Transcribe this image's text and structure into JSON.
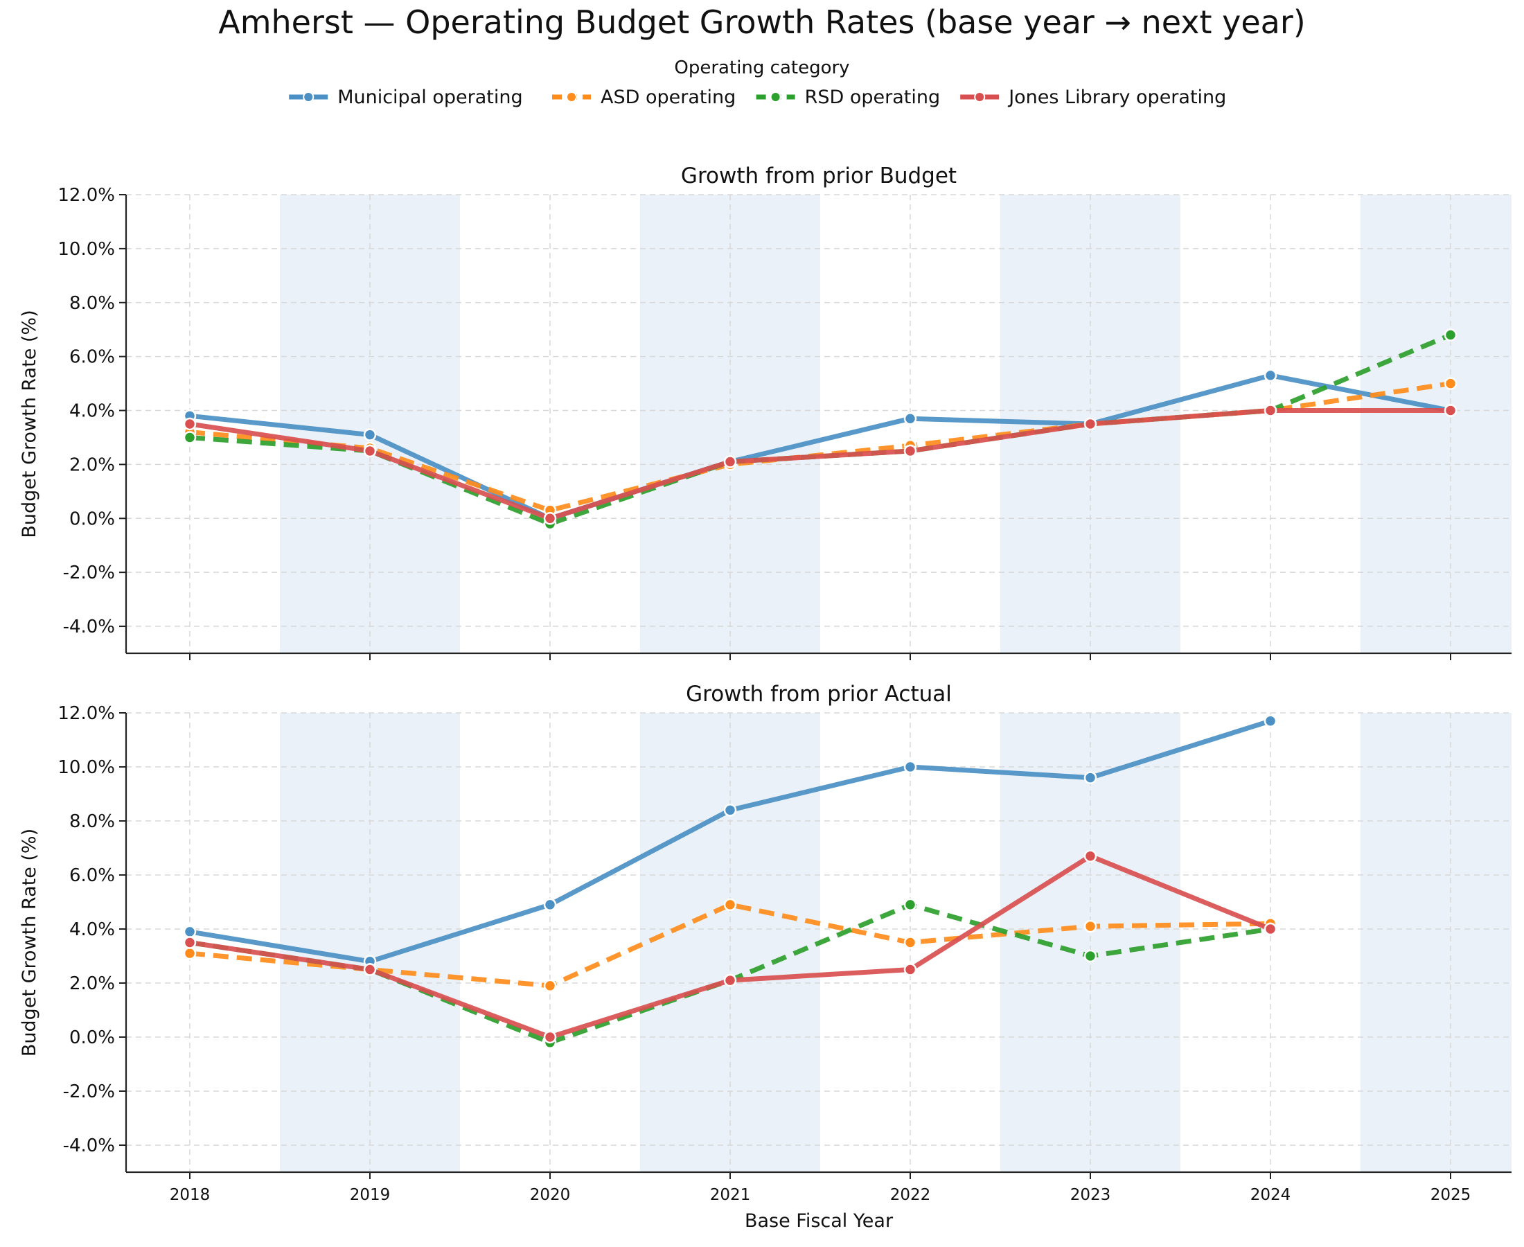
{
  "title": "Amherst — Operating Budget Growth Rates (base year → next year)",
  "legend": {
    "title": "Operating category",
    "placement": "top-center"
  },
  "colors": {
    "Municipal operating": "#4a90c4",
    "ASD operating": "#ff8c1a",
    "RSD operating": "#2ca02c",
    "Jones Library operating": "#d94f4f",
    "band": "#eaf1f8"
  },
  "chart_data": [
    {
      "type": "line",
      "title": "Growth from prior Budget",
      "xlabel": "Base Fiscal Year",
      "ylabel": "Budget Growth Rate (%)",
      "x": [
        "2018",
        "2019",
        "2020",
        "2021",
        "2022",
        "2023",
        "2024",
        "2025"
      ],
      "ylim": [
        -5,
        12
      ],
      "yticks": [
        "-4.0%",
        "-2.0%",
        "0.0%",
        "2.0%",
        "4.0%",
        "6.0%",
        "8.0%",
        "10.0%",
        "12.0%"
      ],
      "grid": true,
      "series": [
        {
          "name": "Municipal operating",
          "dash": "solid",
          "values": [
            3.8,
            3.1,
            0.0,
            2.1,
            3.7,
            3.5,
            5.3,
            4.0
          ]
        },
        {
          "name": "ASD operating",
          "dash": "dashed",
          "values": [
            3.2,
            2.6,
            0.3,
            2.0,
            2.7,
            3.5,
            4.0,
            5.0
          ]
        },
        {
          "name": "RSD operating",
          "dash": "dashed",
          "values": [
            3.0,
            2.5,
            -0.2,
            2.1,
            2.5,
            3.5,
            4.0,
            6.8
          ]
        },
        {
          "name": "Jones Library operating",
          "dash": "solid",
          "values": [
            3.5,
            2.5,
            0.0,
            2.1,
            2.5,
            3.5,
            4.0,
            4.0
          ]
        }
      ]
    },
    {
      "type": "line",
      "title": "Growth from prior Actual",
      "xlabel": "Base Fiscal Year",
      "ylabel": "Budget Growth Rate (%)",
      "x": [
        "2018",
        "2019",
        "2020",
        "2021",
        "2022",
        "2023",
        "2024",
        "2025"
      ],
      "ylim": [
        -5,
        12
      ],
      "yticks": [
        "-4.0%",
        "-2.0%",
        "0.0%",
        "2.0%",
        "4.0%",
        "6.0%",
        "8.0%",
        "10.0%",
        "12.0%"
      ],
      "grid": true,
      "series": [
        {
          "name": "Municipal operating",
          "dash": "solid",
          "values": [
            3.9,
            2.8,
            4.9,
            8.4,
            10.0,
            9.6,
            11.7,
            null
          ]
        },
        {
          "name": "ASD operating",
          "dash": "dashed",
          "values": [
            3.1,
            2.5,
            1.9,
            4.9,
            3.5,
            4.1,
            4.2,
            null
          ]
        },
        {
          "name": "RSD operating",
          "dash": "dashed",
          "values": [
            3.5,
            2.5,
            -0.2,
            2.1,
            4.9,
            3.0,
            4.0,
            null
          ]
        },
        {
          "name": "Jones Library operating",
          "dash": "solid",
          "values": [
            3.5,
            2.5,
            0.0,
            2.1,
            2.5,
            6.7,
            4.0,
            null
          ]
        }
      ]
    }
  ]
}
